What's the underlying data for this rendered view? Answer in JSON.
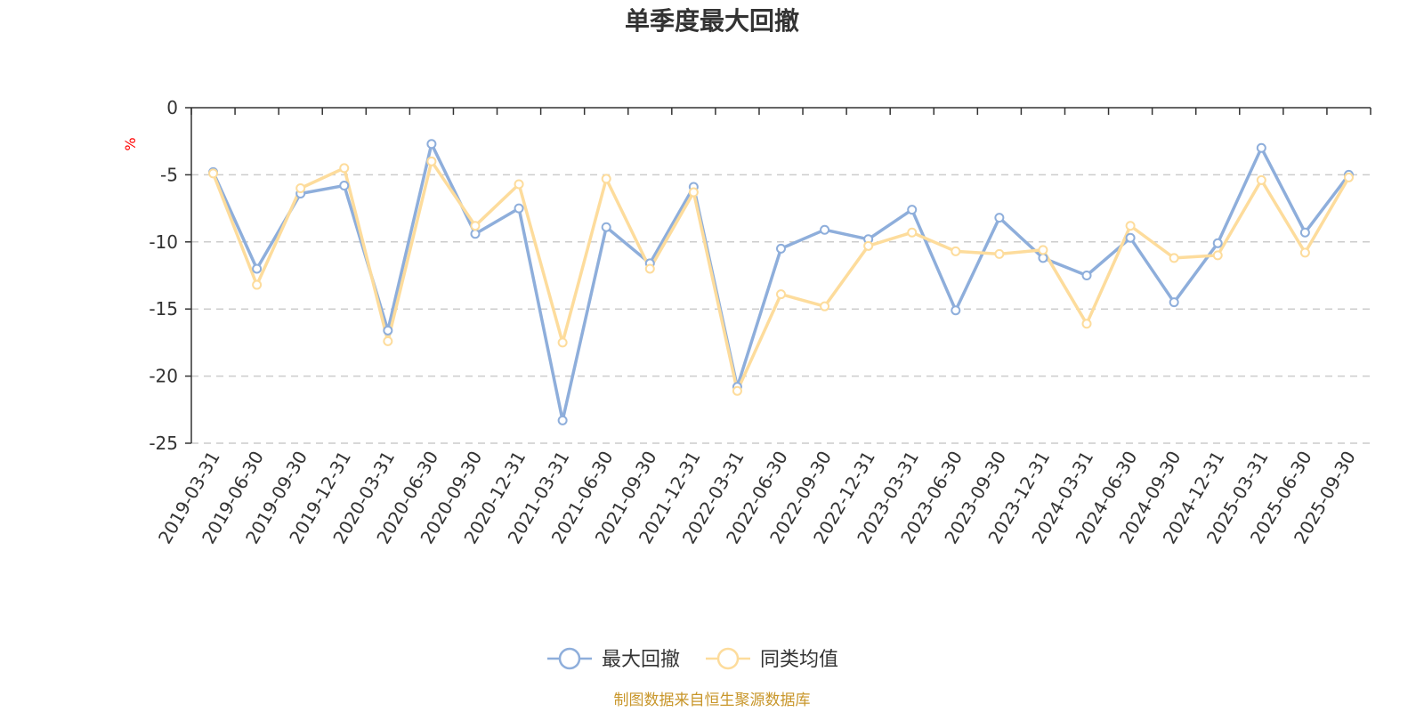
{
  "chart_data": {
    "type": "line",
    "title": "单季度最大回撤",
    "ylabel": "%",
    "ylim": [
      -25,
      0
    ],
    "yticks": [
      0,
      -5,
      -10,
      -15,
      -20,
      -25
    ],
    "grid": true,
    "legend_position": "bottom-center",
    "categories": [
      "2019-03-31",
      "2019-06-30",
      "2019-09-30",
      "2019-12-31",
      "2020-03-31",
      "2020-06-30",
      "2020-09-30",
      "2020-12-31",
      "2021-03-31",
      "2021-06-30",
      "2021-09-30",
      "2021-12-31",
      "2022-03-31",
      "2022-06-30",
      "2022-09-30",
      "2022-12-31",
      "2023-03-31",
      "2023-06-30",
      "2023-09-30",
      "2023-12-31",
      "2024-03-31",
      "2024-06-30",
      "2024-09-30",
      "2024-12-31",
      "2025-03-31",
      "2025-06-30",
      "2025-09-30"
    ],
    "series": [
      {
        "name": "最大回撤",
        "color": "#8eaedb",
        "values": [
          -4.8,
          -12.0,
          -6.4,
          -5.8,
          -16.6,
          -2.7,
          -9.4,
          -7.5,
          -23.3,
          -8.9,
          -11.6,
          -5.9,
          -20.8,
          -10.5,
          -9.1,
          -9.8,
          -7.6,
          -15.1,
          -8.2,
          -11.2,
          -12.5,
          -9.7,
          -14.5,
          -10.1,
          -3.0,
          -9.3,
          -5.0
        ]
      },
      {
        "name": "同类均值",
        "color": "#fddc9c",
        "values": [
          -4.9,
          -13.2,
          -6.0,
          -4.5,
          -17.4,
          -4.0,
          -8.8,
          -5.7,
          -17.5,
          -5.3,
          -12.0,
          -6.3,
          -21.1,
          -13.9,
          -14.8,
          -10.3,
          -9.3,
          -10.7,
          -10.9,
          -10.6,
          -16.1,
          -8.8,
          -11.2,
          -11.0,
          -5.4,
          -10.8,
          -5.2
        ]
      }
    ]
  },
  "source_text": "制图数据来自恒生聚源数据库"
}
